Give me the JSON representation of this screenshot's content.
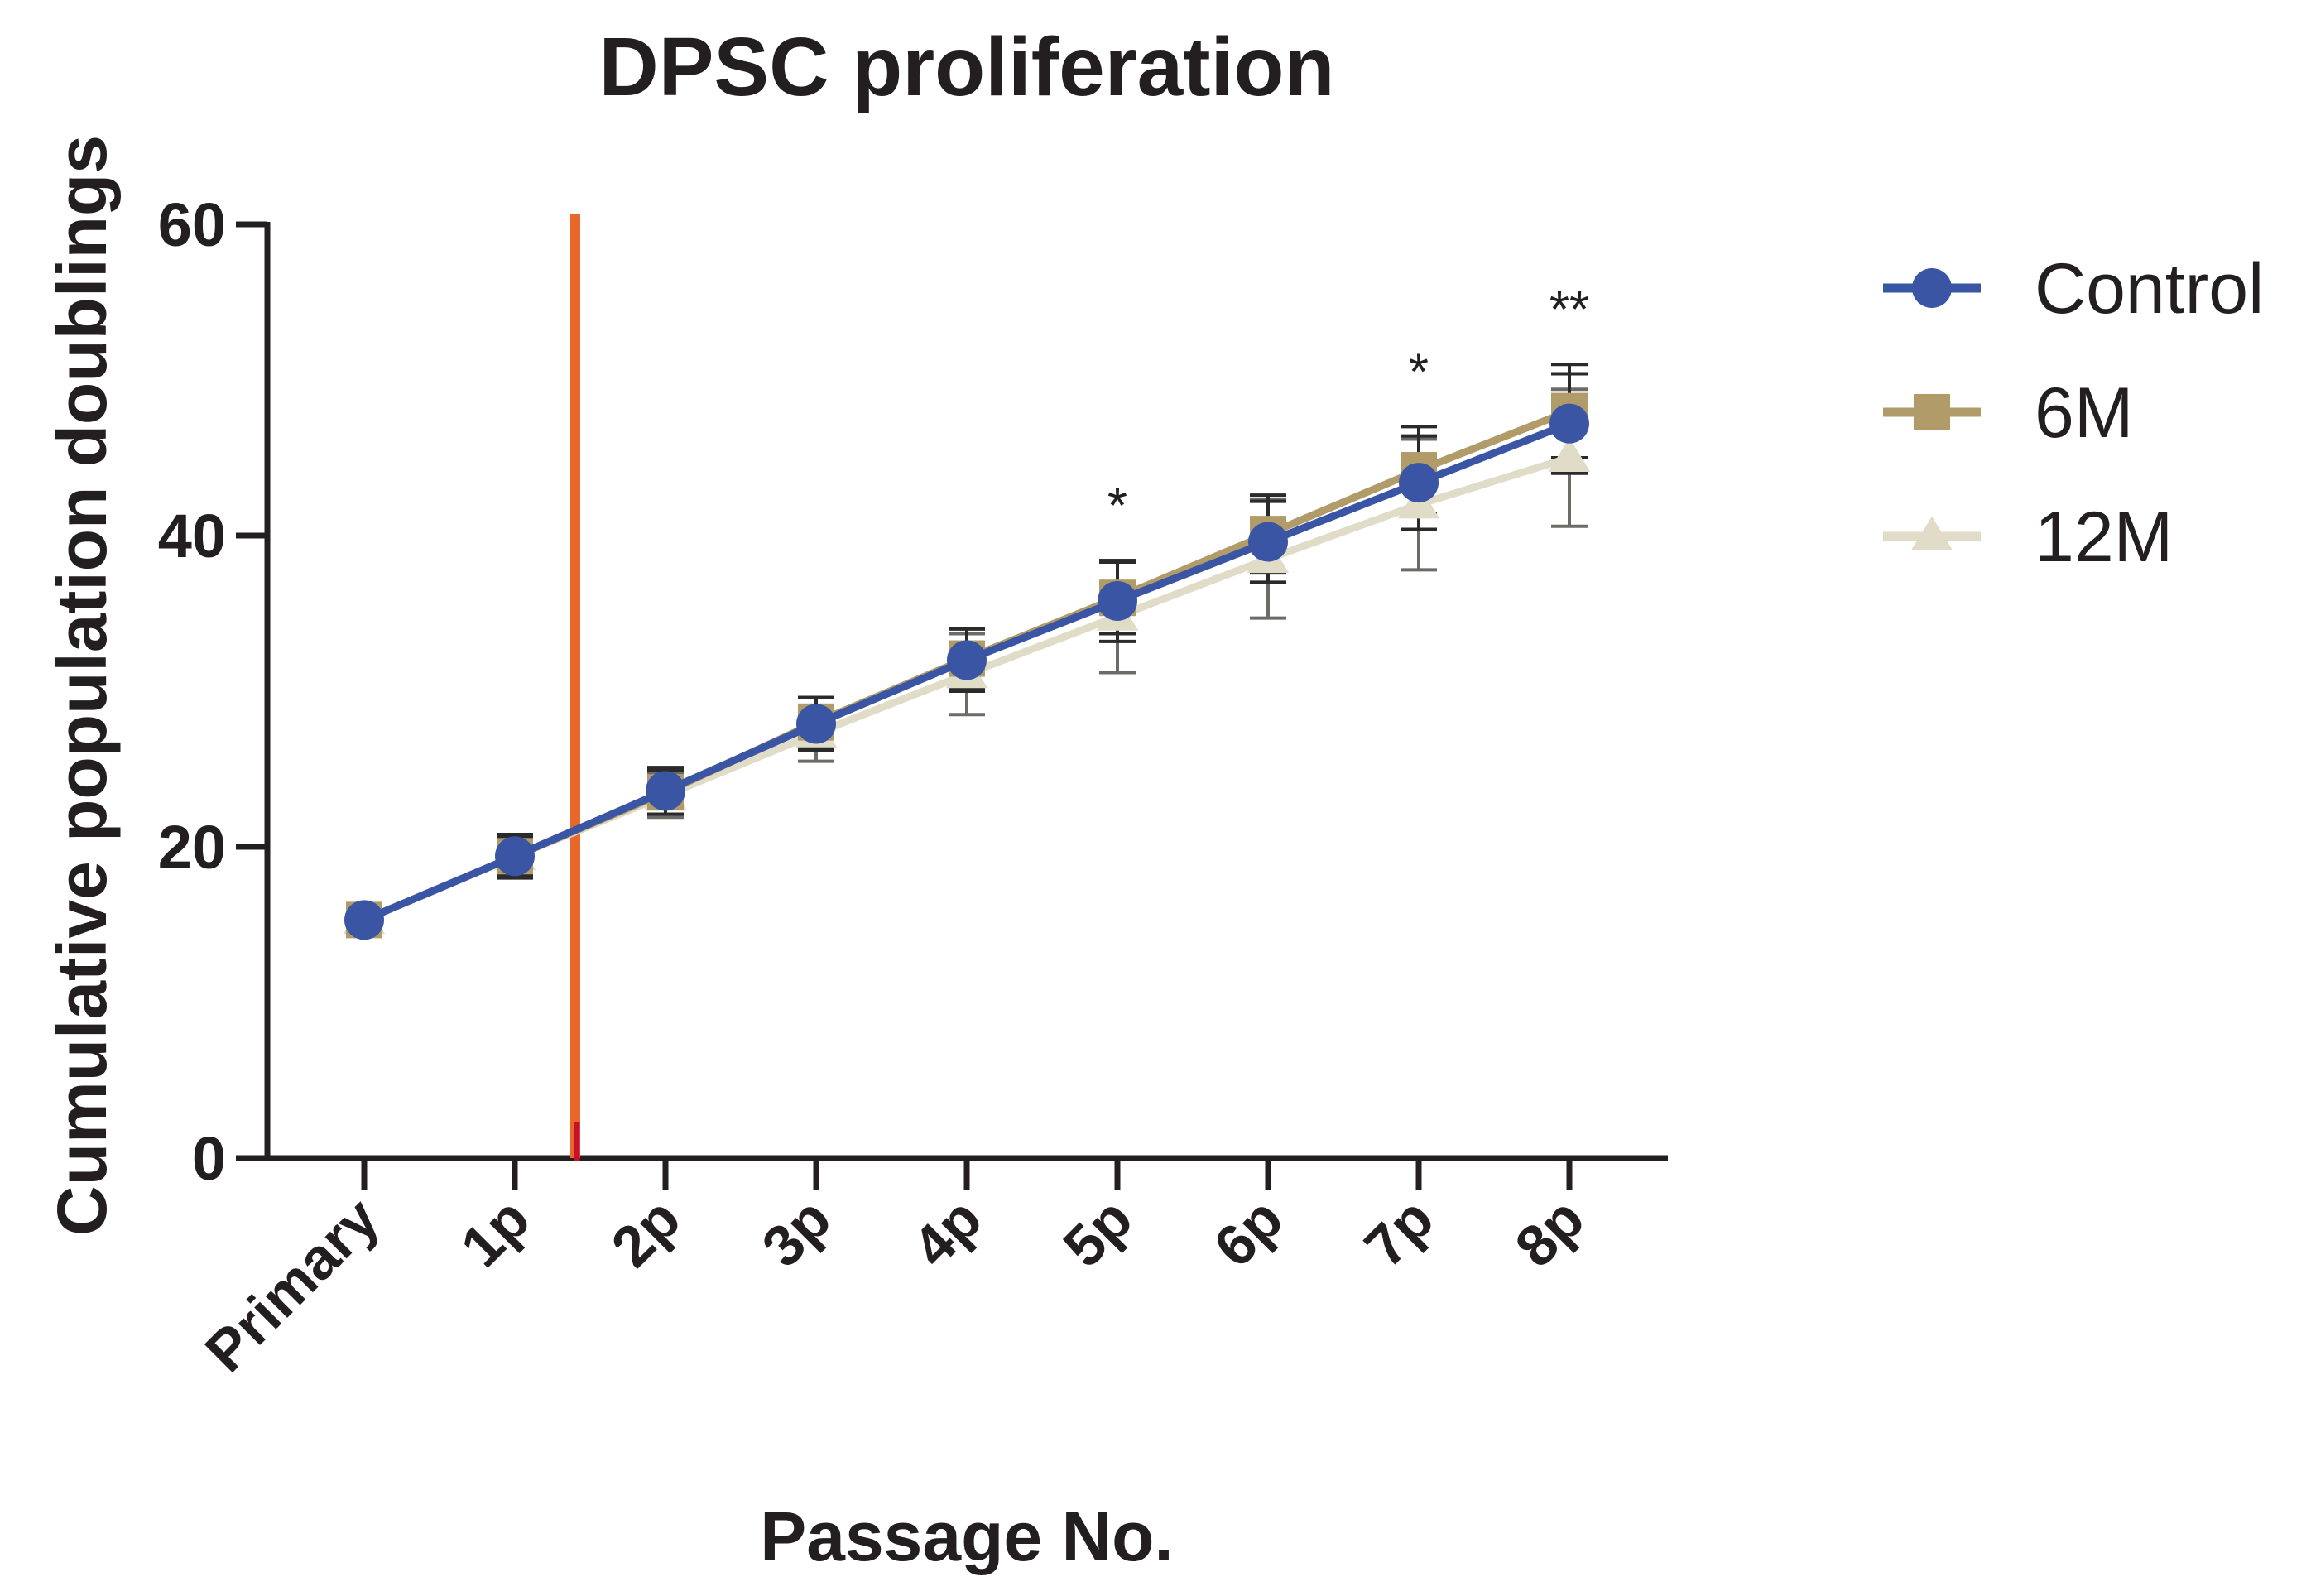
{
  "chart_data": {
    "type": "line",
    "title": "DPSC proliferation",
    "xlabel": "Passage No.",
    "ylabel": "Cumulative population doublings",
    "categories": [
      "Primary",
      "1p",
      "2p",
      "3p",
      "4p",
      "5p",
      "6p",
      "7p",
      "8p"
    ],
    "ylim": [
      0,
      60
    ],
    "yticks": [
      0,
      20,
      40,
      60
    ],
    "grid": false,
    "legend_position": "top-right",
    "series": [
      {
        "name": "Control",
        "marker": "circle",
        "color": "#3a55a4",
        "values": [
          15.3,
          19.4,
          23.6,
          27.9,
          32.0,
          35.8,
          39.6,
          43.4,
          47.2
        ],
        "errors": [
          0.6,
          1.4,
          1.5,
          1.7,
          2.0,
          2.6,
          2.6,
          3.0,
          3.2
        ]
      },
      {
        "name": "6M",
        "marker": "square",
        "color": "#b19b68",
        "values": [
          15.3,
          19.4,
          23.5,
          28.0,
          32.1,
          36.0,
          40.1,
          44.2,
          48.0
        ],
        "errors": [
          0.5,
          1.2,
          1.4,
          1.6,
          1.9,
          2.3,
          2.5,
          2.8,
          3.0
        ]
      },
      {
        "name": "12M",
        "marker": "triangle",
        "color": "#e0dcc8",
        "values": [
          15.3,
          19.4,
          23.3,
          27.3,
          31.1,
          34.8,
          38.5,
          42.0,
          45.0
        ],
        "errors": [
          0.5,
          1.2,
          1.4,
          1.8,
          2.6,
          3.6,
          3.8,
          4.2,
          4.4
        ]
      }
    ],
    "annotations": [
      {
        "category": "5p",
        "text": "*"
      },
      {
        "category": "7p",
        "text": "*"
      },
      {
        "category": "8p",
        "text": "**"
      }
    ],
    "reference_line": {
      "color": "#e8672a",
      "accent_color": "#c8102e"
    }
  }
}
